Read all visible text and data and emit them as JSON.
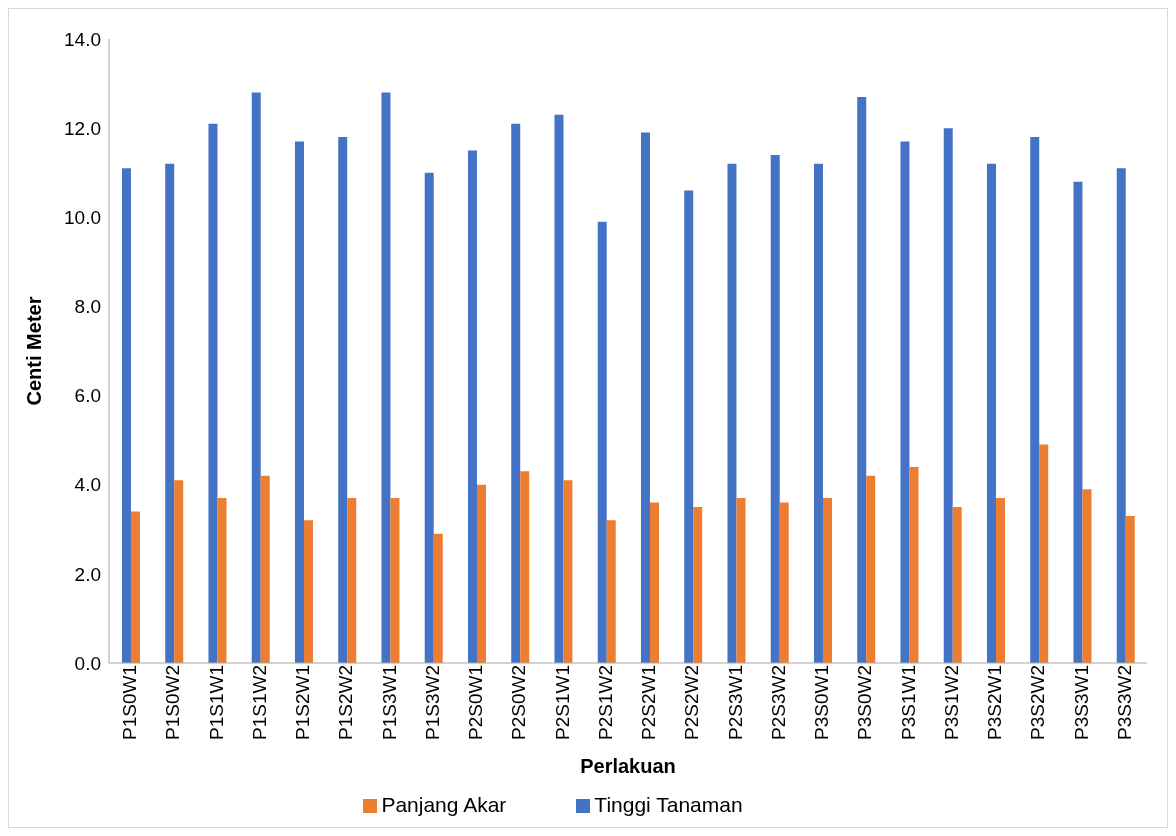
{
  "chart_data": {
    "type": "bar",
    "xlabel": "Perlakuan",
    "ylabel": "Centi Meter",
    "categories": [
      "P1S0W1",
      "P1S0W2",
      "P1S1W1",
      "P1S1W2",
      "P1S2W1",
      "P1S2W2",
      "P1S3W1",
      "P1S3W2",
      "P2S0W1",
      "P2S0W2",
      "P2S1W1",
      "P2S1W2",
      "P2S2W1",
      "P2S2W2",
      "P2S3W1",
      "P2S3W2",
      "P3S0W1",
      "P3S0W2",
      "P3S1W1",
      "P3S1W2",
      "P3S2W1",
      "P3S2W2",
      "P3S3W1",
      "P3S3W2"
    ],
    "series": [
      {
        "name": "Tinggi Tanaman",
        "color": "#4472c4",
        "values": [
          11.1,
          11.2,
          12.1,
          12.8,
          11.7,
          11.8,
          12.8,
          11.0,
          11.5,
          12.1,
          12.3,
          9.9,
          11.9,
          10.6,
          11.2,
          11.4,
          11.2,
          12.7,
          11.7,
          12.0,
          11.2,
          11.8,
          10.8,
          11.1
        ]
      },
      {
        "name": "Panjang Akar",
        "color": "#ed7d31",
        "values": [
          3.4,
          4.1,
          3.7,
          4.2,
          3.2,
          3.7,
          3.7,
          2.9,
          4.0,
          4.3,
          4.1,
          3.2,
          3.6,
          3.5,
          3.7,
          3.6,
          3.7,
          4.2,
          4.4,
          3.5,
          3.7,
          4.9,
          3.9,
          3.3
        ]
      }
    ],
    "ylim": [
      0,
      14
    ],
    "yticks": [
      {
        "value": 0,
        "label": "0.0"
      },
      {
        "value": 2,
        "label": "2.0"
      },
      {
        "value": 4,
        "label": "4.0"
      },
      {
        "value": 6,
        "label": "6.0"
      },
      {
        "value": 8,
        "label": "8.0"
      },
      {
        "value": 10,
        "label": "10.0"
      },
      {
        "value": 12,
        "label": "12.0"
      },
      {
        "value": 14,
        "label": "14.0"
      }
    ],
    "grid": false,
    "legend": "bottom"
  }
}
